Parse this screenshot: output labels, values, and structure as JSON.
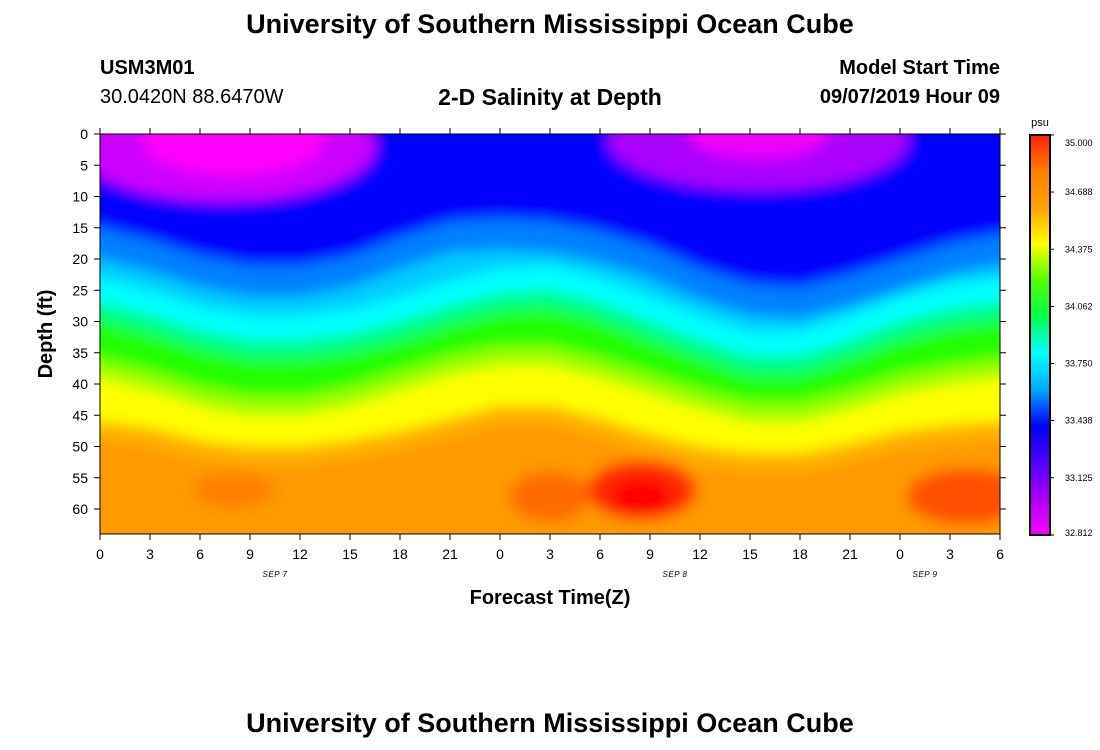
{
  "header": {
    "title": "University of Southern Mississippi Ocean Cube",
    "station_id": "USM3M01",
    "station_coords": "30.0420N 88.6470W",
    "plot_title": "2-D Salinity at Depth",
    "start_time_label": "Model Start Time",
    "start_time_value": "09/07/2019 Hour 09"
  },
  "footer": {
    "title": "University of Southern Mississippi Ocean Cube"
  },
  "chart_data": {
    "type": "heatmap",
    "title": "2-D Salinity at Depth",
    "xlabel": "Forecast Time(Z)",
    "ylabel": "Depth (ft)",
    "x_ticks": [
      "0",
      "3",
      "6",
      "9",
      "12",
      "15",
      "18",
      "21",
      "0",
      "3",
      "6",
      "9",
      "12",
      "15",
      "18",
      "21",
      "0",
      "3",
      "6"
    ],
    "date_labels": [
      {
        "tick_index": 3.5,
        "label": "SEP 7"
      },
      {
        "tick_index": 11.5,
        "label": "SEP 8"
      },
      {
        "tick_index": 16.5,
        "label": "SEP 9"
      }
    ],
    "y_ticks": [
      "0",
      "5",
      "10",
      "15",
      "20",
      "25",
      "30",
      "35",
      "40",
      "45",
      "50",
      "55",
      "60"
    ],
    "y_range_ft": [
      0,
      64
    ],
    "x_range_hours": [
      0,
      54
    ],
    "colorbar": {
      "unit": "psu",
      "min": 32.812,
      "max": 35.0,
      "tick_labels": [
        "35.000",
        "34.688",
        "34.375",
        "34.062",
        "33.750",
        "33.438",
        "33.125",
        "32.812"
      ],
      "color_stops": [
        "#ff00ff",
        "#aa00ff",
        "#5000ff",
        "#0000ff",
        "#00aaff",
        "#00ffff",
        "#00ff50",
        "#50ff00",
        "#ffff00",
        "#ffa500",
        "#ff7f00",
        "#ff2000"
      ]
    },
    "isohalines_depth_ft": {
      "hours": [
        0,
        3,
        6,
        9,
        12,
        15,
        18,
        21,
        24,
        27,
        30,
        33,
        36,
        39,
        42,
        45,
        48,
        51,
        54
      ],
      "upper_blue_boundary": [
        15,
        17,
        19.5,
        21,
        21,
        19.5,
        16.5,
        14,
        13.5,
        14,
        15.5,
        18,
        21.5,
        24,
        24.5,
        22.5,
        20,
        17.5,
        16
      ],
      "cyan_to_green": [
        27,
        29,
        31.5,
        33,
        33,
        32,
        30,
        27.5,
        25.5,
        25,
        27,
        30,
        33,
        35.5,
        35.5,
        33,
        30,
        28,
        27
      ],
      "green_to_yellow": [
        39,
        41,
        43.5,
        45,
        45,
        43.5,
        41,
        38.5,
        37,
        37,
        39,
        41.5,
        44,
        46,
        46,
        44,
        41.5,
        40,
        39
      ],
      "yellow_to_orange": [
        46,
        47,
        49,
        50,
        50,
        49,
        47.5,
        45.5,
        43.5,
        43.5,
        45.5,
        48,
        50,
        51,
        51,
        49.5,
        47.5,
        46.5,
        46
      ]
    }
  }
}
